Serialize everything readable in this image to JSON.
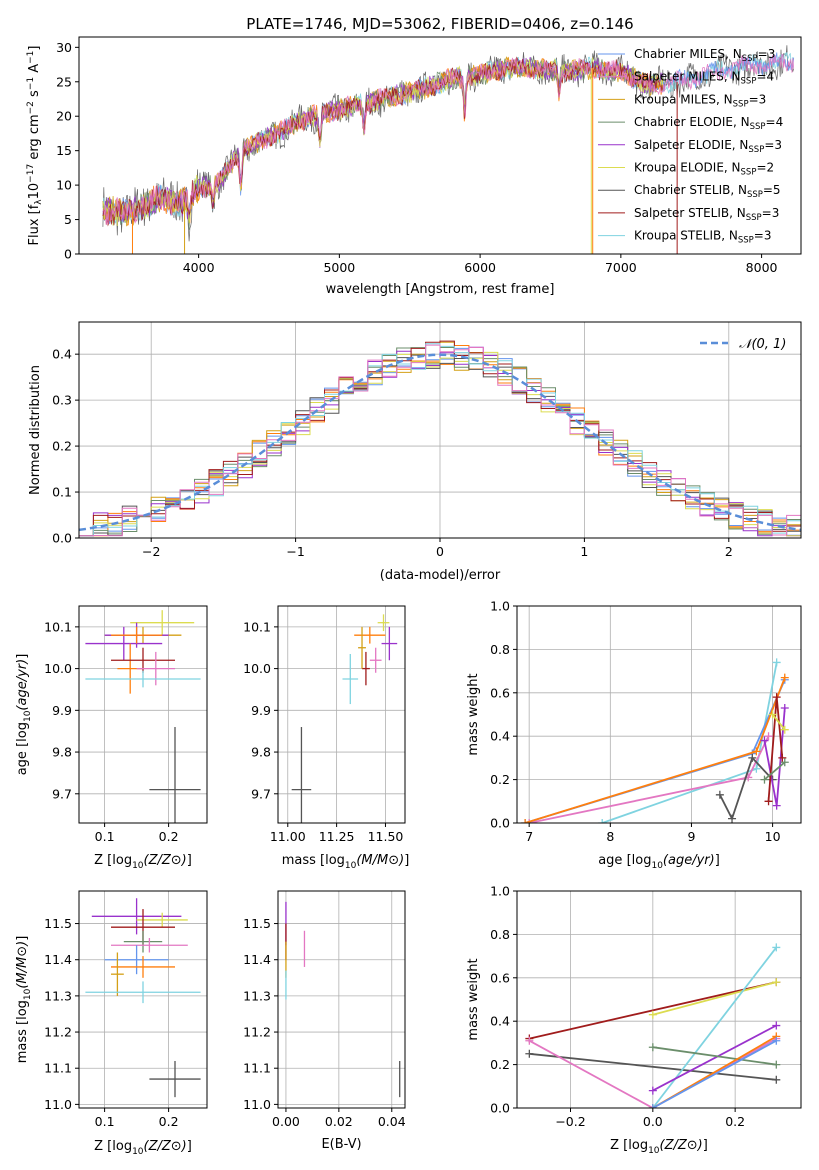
{
  "figure": {
    "title": "PLATE=1746, MJD=53062, FIBERID=0406, z=0.146"
  },
  "colors": {
    "series": [
      "#6495ed",
      "#ff7f0e",
      "#d4a017",
      "#6b8e6b",
      "#9932cc",
      "#dcdc50",
      "#555555",
      "#a01c1c",
      "#7fd3e0",
      "#e377c2"
    ],
    "grid": "#b0b0b0",
    "normal_curve": "#5a8ed8"
  },
  "chart_data": [
    {
      "id": "spectrum",
      "type": "line",
      "xlabel": "wavelength [Angstrom, rest frame]",
      "ylabel": "Flux [f_λ 10^-17 erg cm^-2 s^-1 A^-1]",
      "xlim": [
        3150,
        8280
      ],
      "ylim": [
        0,
        31.5
      ],
      "xticks": [
        4000,
        5000,
        6000,
        7000,
        8000
      ],
      "yticks": [
        0,
        5,
        10,
        15,
        20,
        25,
        30
      ],
      "grid": false,
      "legend_position": "top-right",
      "legend": [
        {
          "main": "Chabrier MILES, N",
          "sub": "SSP",
          "tail": "=3"
        },
        {
          "main": "Salpeter MILES, N",
          "sub": "SSP",
          "tail": "=4"
        },
        {
          "main": "Kroupa MILES, N",
          "sub": "SSP",
          "tail": "=3"
        },
        {
          "main": "Chabrier ELODIE, N",
          "sub": "SSP",
          "tail": "=4"
        },
        {
          "main": "Salpeter ELODIE, N",
          "sub": "SSP",
          "tail": "=3"
        },
        {
          "main": "Kroupa ELODIE, N",
          "sub": "SSP",
          "tail": "=2"
        },
        {
          "main": "Chabrier STELIB, N",
          "sub": "SSP",
          "tail": "=5"
        },
        {
          "main": "Salpeter STELIB, N",
          "sub": "SSP",
          "tail": "=3"
        },
        {
          "main": "Kroupa STELIB, N",
          "sub": "SSP",
          "tail": "=3"
        }
      ],
      "continuum": [
        [
          3320,
          6.5
        ],
        [
          3500,
          5.8
        ],
        [
          3700,
          8.0
        ],
        [
          3900,
          7.5
        ],
        [
          4000,
          9.5
        ],
        [
          4150,
          10.5
        ],
        [
          4300,
          15.0
        ],
        [
          4500,
          17.0
        ],
        [
          4800,
          20.0
        ],
        [
          5000,
          21.0
        ],
        [
          5200,
          22.0
        ],
        [
          5400,
          23.0
        ],
        [
          5600,
          24.0
        ],
        [
          5800,
          25.5
        ],
        [
          6000,
          26.0
        ],
        [
          6200,
          27.0
        ],
        [
          6400,
          27.0
        ],
        [
          6600,
          26.5
        ],
        [
          6800,
          27.0
        ],
        [
          7000,
          26.5
        ],
        [
          7200,
          24.5
        ],
        [
          7400,
          25.0
        ],
        [
          7600,
          26.0
        ],
        [
          7800,
          27.0
        ],
        [
          8000,
          27.5
        ],
        [
          8230,
          28.0
        ]
      ],
      "absorption_features": [
        [
          3934,
          -3
        ],
        [
          4102,
          -2.5
        ],
        [
          4300,
          -5
        ],
        [
          4861,
          -4
        ],
        [
          5175,
          -4
        ],
        [
          5890,
          -5
        ],
        [
          6563,
          -3
        ]
      ]
    },
    {
      "id": "residuals",
      "type": "histogram",
      "xlabel": "(data-model)/error",
      "ylabel": "Normed distribution",
      "xlim": [
        -2.5,
        2.5
      ],
      "ylim": [
        0,
        0.47
      ],
      "xticks": [
        -2,
        -1,
        0,
        1,
        2
      ],
      "yticks": [
        0.0,
        0.1,
        0.2,
        0.3,
        0.4
      ],
      "bin_width": 0.1,
      "grid": true,
      "legend": [
        "𝒩(0, 1)"
      ],
      "legend_position": "top-right"
    },
    {
      "id": "age-vs-Z",
      "type": "scatter",
      "xlabel": "Z [log10(Z/Z⊙)]",
      "ylabel": "age  [log10(age/yr)]",
      "xlim": [
        0.06,
        0.26
      ],
      "ylim": [
        9.63,
        10.15
      ],
      "xticks": [
        0.1,
        0.2
      ],
      "yticks": [
        9.7,
        9.8,
        9.9,
        10.0,
        10.1
      ],
      "grid": true,
      "points": [
        {
          "x": 0.16,
          "y": 10.08,
          "xerr": 0.06,
          "yerr": 0.02,
          "c": 2
        },
        {
          "x": 0.19,
          "y": 10.11,
          "xerr": 0.05,
          "yerr": 0.03,
          "c": 5
        },
        {
          "x": 0.15,
          "y": 10.08,
          "xerr": 0.05,
          "yerr": 0.03,
          "c": 4
        },
        {
          "x": 0.13,
          "y": 10.06,
          "xerr": 0.06,
          "yerr": 0.04,
          "c": 4
        },
        {
          "x": 0.15,
          "y": 10.08,
          "xerr": 0.04,
          "yerr": 0.02,
          "c": 1
        },
        {
          "x": 0.14,
          "y": 10.0,
          "xerr": 0.02,
          "yerr": 0.06,
          "c": 1
        },
        {
          "x": 0.16,
          "y": 10.02,
          "xerr": 0.05,
          "yerr": 0.03,
          "c": 7
        },
        {
          "x": 0.18,
          "y": 10.0,
          "xerr": 0.03,
          "yerr": 0.04,
          "c": 9
        },
        {
          "x": 0.16,
          "y": 9.975,
          "xerr": 0.09,
          "yerr": 0.02,
          "c": 8
        },
        {
          "x": 0.21,
          "y": 9.71,
          "xerr": 0.04,
          "yerr": 0.15,
          "c": 6
        }
      ]
    },
    {
      "id": "age-vs-mass",
      "type": "scatter",
      "xlabel": "mass [log10(M/M⊙)]",
      "ylabel": "",
      "xlim": [
        10.95,
        11.6
      ],
      "ylim": [
        9.63,
        10.15
      ],
      "xticks": [
        11.0,
        11.25,
        11.5
      ],
      "yticks": [
        9.7,
        9.8,
        9.9,
        10.0,
        10.1
      ],
      "grid": true,
      "points": [
        {
          "x": 11.42,
          "y": 10.08,
          "xerr": 0.08,
          "yerr": 0.02,
          "c": 1
        },
        {
          "x": 11.49,
          "y": 10.11,
          "xerr": 0.03,
          "yerr": 0.02,
          "c": 5
        },
        {
          "x": 11.52,
          "y": 10.06,
          "xerr": 0.04,
          "yerr": 0.04,
          "c": 4
        },
        {
          "x": 11.45,
          "y": 10.02,
          "xerr": 0.03,
          "yerr": 0.03,
          "c": 9
        },
        {
          "x": 11.4,
          "y": 10.0,
          "xerr": 0.02,
          "yerr": 0.04,
          "c": 7
        },
        {
          "x": 11.38,
          "y": 10.05,
          "xerr": 0.02,
          "yerr": 0.05,
          "c": 2
        },
        {
          "x": 11.32,
          "y": 9.975,
          "xerr": 0.04,
          "yerr": 0.06,
          "c": 8
        },
        {
          "x": 11.07,
          "y": 9.71,
          "xerr": 0.05,
          "yerr": 0.15,
          "c": 6
        }
      ]
    },
    {
      "id": "mass-weight-vs-age",
      "type": "line",
      "xlabel": "age  [log10(age/yr)]",
      "ylabel": "mass weight",
      "xlim": [
        6.85,
        10.35
      ],
      "ylim": [
        0,
        1.0
      ],
      "xticks": [
        7,
        8,
        9,
        10
      ],
      "yticks": [
        0.0,
        0.2,
        0.4,
        0.6,
        0.8,
        1.0
      ],
      "grid": true,
      "series": [
        {
          "c": 8,
          "points": [
            [
              7.9,
              0.0
            ],
            [
              9.8,
              0.25
            ],
            [
              10.05,
              0.74
            ]
          ]
        },
        {
          "c": 9,
          "points": [
            [
              7.0,
              0.0
            ],
            [
              9.7,
              0.21
            ],
            [
              9.95,
              0.4
            ]
          ]
        },
        {
          "c": 0,
          "points": [
            [
              6.95,
              0.0
            ],
            [
              9.75,
              0.32
            ],
            [
              10.15,
              0.66
            ]
          ]
        },
        {
          "c": 1,
          "points": [
            [
              6.95,
              0.0
            ],
            [
              9.8,
              0.33
            ],
            [
              10.15,
              0.67
            ]
          ]
        },
        {
          "c": 6,
          "points": [
            [
              9.35,
              0.13
            ],
            [
              9.5,
              0.02
            ],
            [
              9.75,
              0.3
            ],
            [
              10.0,
              0.2
            ]
          ]
        },
        {
          "c": 4,
          "points": [
            [
              9.9,
              0.38
            ],
            [
              10.05,
              0.08
            ],
            [
              10.15,
              0.53
            ]
          ]
        },
        {
          "c": 7,
          "points": [
            [
              9.95,
              0.1
            ],
            [
              10.05,
              0.58
            ],
            [
              10.12,
              0.3
            ]
          ]
        },
        {
          "c": 5,
          "points": [
            [
              10.0,
              0.5
            ],
            [
              10.15,
              0.43
            ]
          ]
        },
        {
          "c": 3,
          "points": [
            [
              9.9,
              0.2
            ],
            [
              10.15,
              0.28
            ]
          ]
        }
      ]
    },
    {
      "id": "mass-vs-Z",
      "type": "scatter",
      "xlabel": "Z [log10(Z/Z⊙)]",
      "ylabel": "mass [log10(M/M⊙)]",
      "xlim": [
        0.06,
        0.26
      ],
      "ylim": [
        10.99,
        11.59
      ],
      "xticks": [
        0.1,
        0.2
      ],
      "yticks": [
        11.0,
        11.1,
        11.2,
        11.3,
        11.4,
        11.5
      ],
      "grid": true,
      "points": [
        {
          "x": 0.15,
          "y": 11.52,
          "xerr": 0.07,
          "yerr": 0.05,
          "c": 4
        },
        {
          "x": 0.19,
          "y": 11.51,
          "xerr": 0.04,
          "yerr": 0.02,
          "c": 5
        },
        {
          "x": 0.16,
          "y": 11.49,
          "xerr": 0.05,
          "yerr": 0.05,
          "c": 7
        },
        {
          "x": 0.16,
          "y": 11.45,
          "xerr": 0.03,
          "yerr": 0.03,
          "c": 3
        },
        {
          "x": 0.17,
          "y": 11.44,
          "xerr": 0.06,
          "yerr": 0.02,
          "c": 9
        },
        {
          "x": 0.15,
          "y": 11.4,
          "xerr": 0.05,
          "yerr": 0.04,
          "c": 0
        },
        {
          "x": 0.16,
          "y": 11.38,
          "xerr": 0.05,
          "yerr": 0.03,
          "c": 1
        },
        {
          "x": 0.12,
          "y": 11.36,
          "xerr": 0.01,
          "yerr": 0.06,
          "c": 2
        },
        {
          "x": 0.16,
          "y": 11.31,
          "xerr": 0.09,
          "yerr": 0.03,
          "c": 8
        },
        {
          "x": 0.21,
          "y": 11.07,
          "xerr": 0.04,
          "yerr": 0.05,
          "c": 6
        }
      ]
    },
    {
      "id": "mass-vs-EBV",
      "type": "scatter",
      "xlabel": "E(B-V)",
      "ylabel": "",
      "xlim": [
        -0.003,
        0.045
      ],
      "ylim": [
        10.99,
        11.59
      ],
      "xticks": [
        0.0,
        0.02,
        0.04
      ],
      "yticks": [
        11.0,
        11.1,
        11.2,
        11.3,
        11.4,
        11.5
      ],
      "grid": true,
      "points": [
        {
          "x": 0.0,
          "y": 11.5,
          "xerr": 0.0,
          "yerr": 0.06,
          "c": 4
        },
        {
          "x": 0.0,
          "y": 11.45,
          "xerr": 0.0,
          "yerr": 0.05,
          "c": 7
        },
        {
          "x": 0.0,
          "y": 11.4,
          "xerr": 0.0,
          "yerr": 0.05,
          "c": 2
        },
        {
          "x": 0.007,
          "y": 11.43,
          "xerr": 0.0,
          "yerr": 0.05,
          "c": 9
        },
        {
          "x": 0.0,
          "y": 11.33,
          "xerr": 0.0,
          "yerr": 0.04,
          "c": 8
        },
        {
          "x": 0.043,
          "y": 11.07,
          "xerr": 0.0,
          "yerr": 0.05,
          "c": 6
        }
      ]
    },
    {
      "id": "mass-weight-vs-Z",
      "type": "line",
      "xlabel": "Z [log10(Z/Z⊙)]",
      "ylabel": "mass weight",
      "xlim": [
        -0.33,
        0.36
      ],
      "ylim": [
        0,
        1.0
      ],
      "xticks": [
        -0.2,
        0.0,
        0.2
      ],
      "yticks": [
        0.0,
        0.2,
        0.4,
        0.6,
        0.8,
        1.0
      ],
      "grid": true,
      "series": [
        {
          "c": 6,
          "points": [
            [
              -0.3,
              0.25
            ],
            [
              0.3,
              0.13
            ]
          ]
        },
        {
          "c": 7,
          "points": [
            [
              -0.3,
              0.32
            ],
            [
              0.3,
              0.58
            ]
          ]
        },
        {
          "c": 9,
          "points": [
            [
              -0.3,
              0.31
            ],
            [
              0.0,
              0.0
            ],
            [
              0.3,
              0.32
            ]
          ]
        },
        {
          "c": 5,
          "points": [
            [
              0.0,
              0.43
            ],
            [
              0.3,
              0.58
            ]
          ]
        },
        {
          "c": 8,
          "points": [
            [
              0.0,
              0.0
            ],
            [
              0.3,
              0.74
            ]
          ]
        },
        {
          "c": 4,
          "points": [
            [
              0.0,
              0.08
            ],
            [
              0.3,
              0.38
            ]
          ]
        },
        {
          "c": 3,
          "points": [
            [
              0.0,
              0.28
            ],
            [
              0.3,
              0.2
            ]
          ]
        },
        {
          "c": 1,
          "points": [
            [
              0.0,
              0.0
            ],
            [
              0.3,
              0.33
            ]
          ]
        },
        {
          "c": 0,
          "points": [
            [
              0.0,
              0.0
            ],
            [
              0.3,
              0.31
            ]
          ]
        }
      ]
    }
  ]
}
